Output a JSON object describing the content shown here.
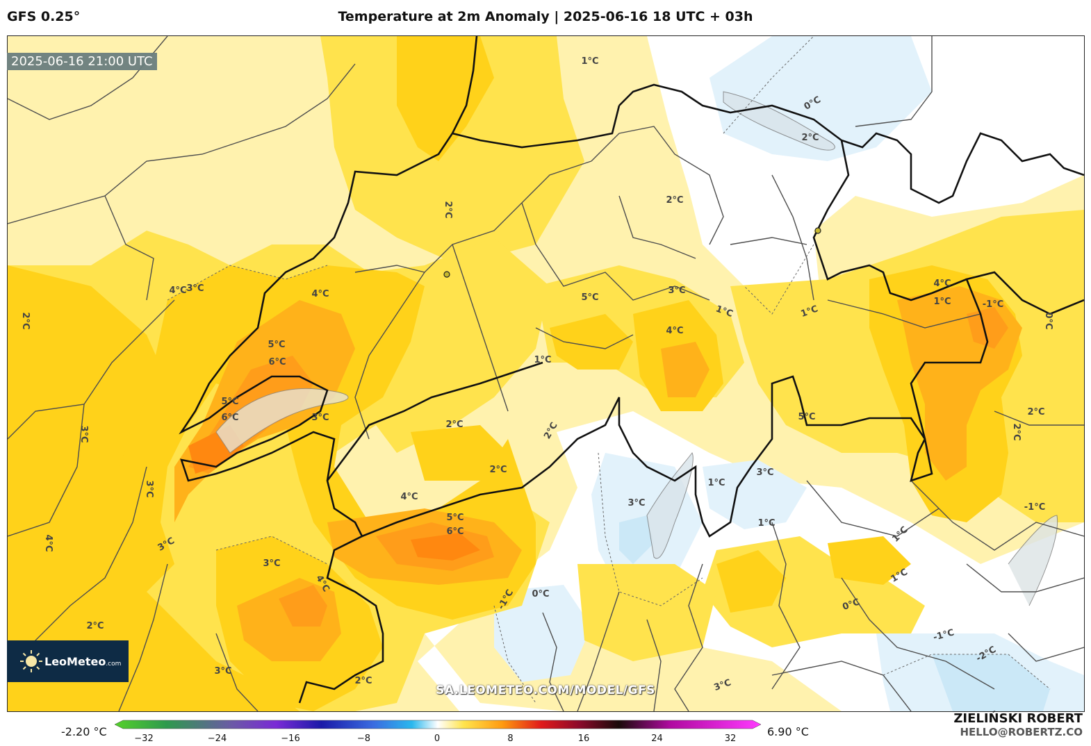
{
  "header": {
    "model": "GFS 0.25°",
    "title": "Temperature at 2m Anomaly | 2025-06-16 18 UTC + 03h"
  },
  "map": {
    "timestamp": "2025-06-16 21:00 UTC",
    "watermark": "SA.LEOMETEO.COM/MODEL/GFS",
    "logo_text": "LeoMeteo",
    "logo_suffix": ".com",
    "contour_labels": [
      "1°C",
      "0°C",
      "2°C",
      "2°C",
      "2°C",
      "3°C",
      "2°C",
      "4°C",
      "5°C",
      "6°C",
      "5°C",
      "6°C",
      "3°C",
      "3°C",
      "3°C",
      "4°C",
      "3°C",
      "4°C",
      "2°C",
      "3°C",
      "3°C",
      "4°C",
      "5°C",
      "3°C",
      "1°C",
      "1°C",
      "4°C",
      "1°C",
      "-1°C",
      "0°C",
      "2°C",
      "2°C",
      "1°C",
      "2°C",
      "2°C",
      "2°C",
      "4°C",
      "5°C",
      "6°C",
      "4°C",
      "5°C",
      "3°C",
      "1°C",
      "3°C",
      "0°C",
      "-1°C",
      "0°C",
      "1°C",
      "1°C",
      "-1°C",
      "-2°C",
      "-1°C",
      "2°C",
      "3°C",
      "1°C",
      "3°C",
      "2°C"
    ],
    "colors": {
      "pale_yellow": "#fff2ae",
      "yellow": "#ffe34d",
      "gold": "#ffd21a",
      "orange": "#ffb21a",
      "deep_orange": "#ff9110",
      "light_blue": "#e2f2fb",
      "blue": "#cbe8f7",
      "border": "#111111",
      "region_line": "#4d4d4d"
    }
  },
  "colorbar": {
    "min_label": "-2.20 °C",
    "max_label": "6.90 °C",
    "ticks": [
      "−32",
      "−24",
      "−16",
      "−8",
      "0",
      "8",
      "16",
      "24",
      "32"
    ]
  },
  "credit": {
    "name": "ZIELIŃSKI ROBERT",
    "email": "HELLO@ROBERTZ.CO"
  }
}
